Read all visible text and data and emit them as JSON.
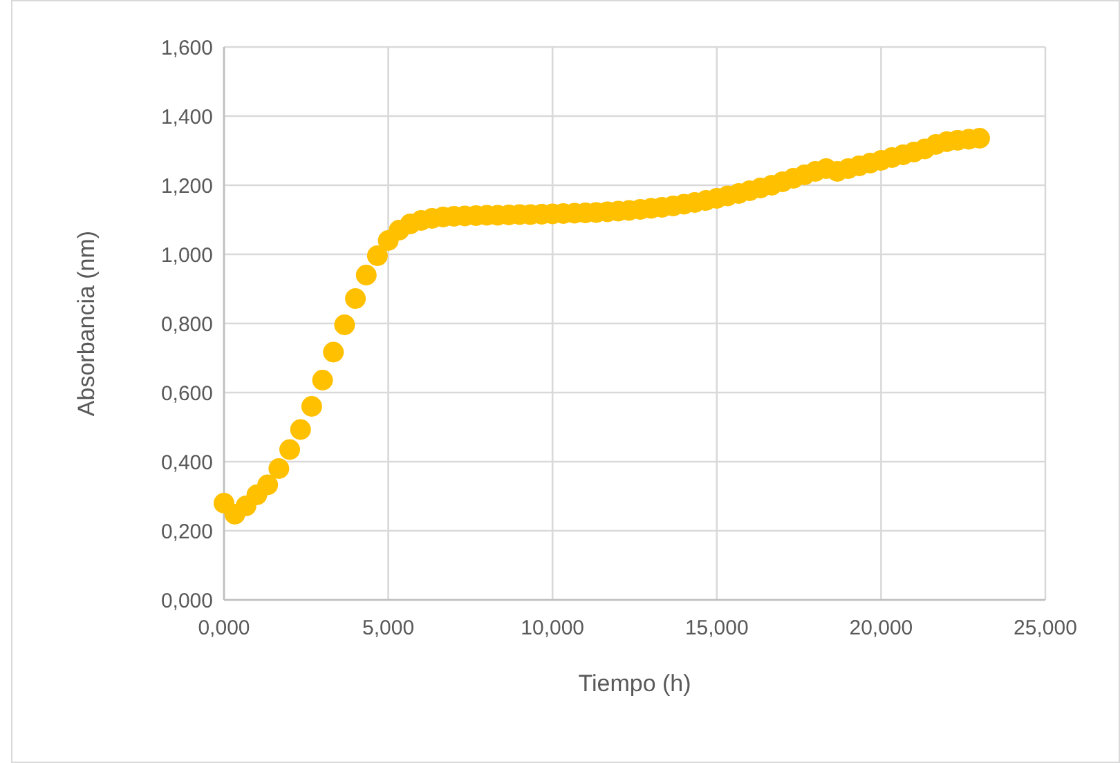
{
  "chart_data": {
    "type": "scatter",
    "xlabel": "Tiempo (h)",
    "ylabel": "Absorbancia (nm)",
    "x": [
      0,
      0.33,
      0.67,
      1,
      1.33,
      1.67,
      2,
      2.33,
      2.67,
      3,
      3.33,
      3.67,
      4,
      4.33,
      4.67,
      5,
      5.33,
      5.67,
      6,
      6.33,
      6.67,
      7,
      7.33,
      7.67,
      8,
      8.33,
      8.67,
      9,
      9.33,
      9.67,
      10,
      10.33,
      10.67,
      11,
      11.33,
      11.67,
      12,
      12.33,
      12.67,
      13,
      13.33,
      13.67,
      14,
      14.33,
      14.67,
      15,
      15.33,
      15.67,
      16,
      16.33,
      16.67,
      17,
      17.33,
      17.67,
      18,
      18.33,
      18.67,
      19,
      19.33,
      19.67,
      20,
      20.33,
      20.67,
      21,
      21.33,
      21.67,
      22,
      22.33,
      22.67,
      23
    ],
    "series": [
      {
        "color": "#ffc000",
        "values": [
          0.28,
          0.248,
          0.272,
          0.304,
          0.333,
          0.38,
          0.435,
          0.493,
          0.56,
          0.636,
          0.717,
          0.796,
          0.872,
          0.94,
          0.996,
          1.04,
          1.07,
          1.088,
          1.098,
          1.104,
          1.108,
          1.11,
          1.111,
          1.112,
          1.113,
          1.113,
          1.114,
          1.115,
          1.115,
          1.116,
          1.117,
          1.118,
          1.119,
          1.12,
          1.121,
          1.123,
          1.125,
          1.127,
          1.13,
          1.133,
          1.136,
          1.14,
          1.145,
          1.15,
          1.156,
          1.162,
          1.169,
          1.176,
          1.184,
          1.192,
          1.2,
          1.21,
          1.22,
          1.23,
          1.24,
          1.248,
          1.24,
          1.248,
          1.256,
          1.264,
          1.272,
          1.28,
          1.288,
          1.296,
          1.305,
          1.318,
          1.326,
          1.33,
          1.333,
          1.336
        ]
      }
    ],
    "xlim": [
      0,
      25
    ],
    "xticks": [
      {
        "value": 0,
        "label": "0,000"
      },
      {
        "value": 5,
        "label": "5,000"
      },
      {
        "value": 10,
        "label": "10,000"
      },
      {
        "value": 15,
        "label": "15,000"
      },
      {
        "value": 20,
        "label": "20,000"
      },
      {
        "value": 25,
        "label": "25,000"
      }
    ],
    "ylim": [
      0,
      1.6
    ],
    "yticks": [
      {
        "value": 0,
        "label": "0,000"
      },
      {
        "value": 0.2,
        "label": "0,200"
      },
      {
        "value": 0.4,
        "label": "0,400"
      },
      {
        "value": 0.6,
        "label": "0,600"
      },
      {
        "value": 0.8,
        "label": "0,800"
      },
      {
        "value": 1,
        "label": "1,000"
      },
      {
        "value": 1.2,
        "label": "1,200"
      },
      {
        "value": 1.4,
        "label": "1,400"
      },
      {
        "value": 1.6,
        "label": "1,600"
      }
    ],
    "grid": true,
    "marker": "circle"
  }
}
